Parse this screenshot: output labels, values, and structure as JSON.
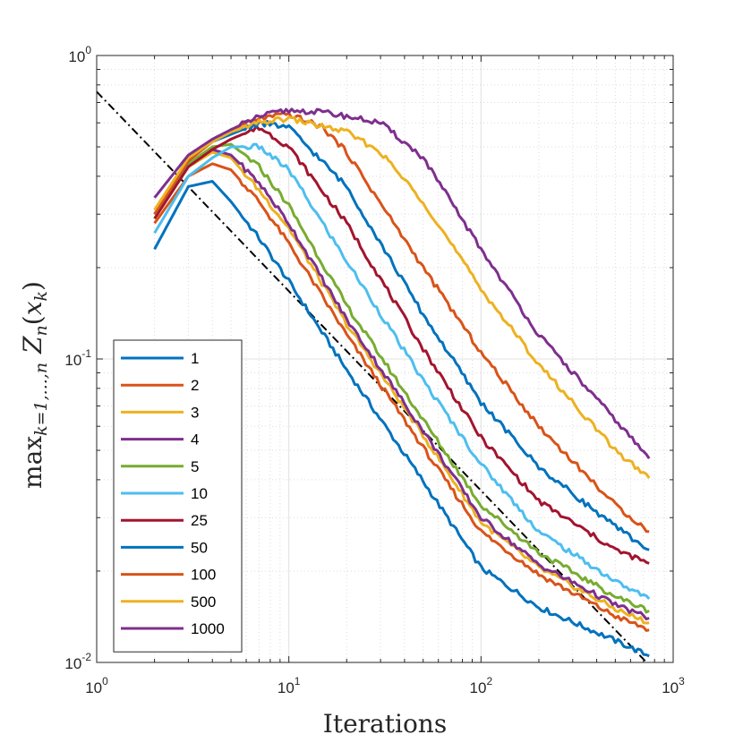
{
  "chart_data": {
    "type": "line",
    "xscale": "log",
    "yscale": "log",
    "xlim": [
      1,
      1000
    ],
    "ylim": [
      0.01,
      1
    ],
    "grid": true,
    "minor_grid": true,
    "xlabel": "Iterations",
    "ylabel": "max_{k=1,...,n} Z_n(x_k)",
    "ylabel_parts": {
      "max": "max",
      "sub": "k=1,...,n",
      "z": "Z",
      "n": "n",
      "open": "(",
      "x": "x",
      "k": "k",
      "close": ")"
    },
    "x_ticks": [
      {
        "base": "10",
        "exp": "0",
        "value": 1
      },
      {
        "base": "10",
        "exp": "1",
        "value": 10
      },
      {
        "base": "10",
        "exp": "2",
        "value": 100
      },
      {
        "base": "10",
        "exp": "3",
        "value": 1000
      }
    ],
    "y_ticks": [
      {
        "base": "10",
        "exp": "-2",
        "value": 0.01
      },
      {
        "base": "10",
        "exp": "-1",
        "value": 0.1
      },
      {
        "base": "10",
        "exp": "0",
        "value": 1
      }
    ],
    "legend_position": "bottom-left",
    "reference_line": {
      "style": "dash-dot",
      "color": "#000000",
      "x": [
        1,
        750
      ],
      "y": [
        0.76,
        0.0098
      ]
    },
    "series": [
      {
        "name": "1",
        "color": "#0072BD",
        "x": [
          2,
          3,
          4,
          5,
          7,
          10,
          20,
          50,
          100,
          200,
          500,
          750
        ],
        "y": [
          0.23,
          0.37,
          0.385,
          0.33,
          0.25,
          0.18,
          0.092,
          0.0395,
          0.0205,
          0.0152,
          0.0118,
          0.0105
        ]
      },
      {
        "name": "2",
        "color": "#D95319",
        "x": [
          2,
          3,
          4,
          5,
          7,
          10,
          20,
          50,
          100,
          200,
          500,
          750
        ],
        "y": [
          0.28,
          0.4,
          0.44,
          0.42,
          0.33,
          0.24,
          0.12,
          0.051,
          0.027,
          0.0195,
          0.0142,
          0.0128
        ]
      },
      {
        "name": "3",
        "color": "#EDB120",
        "x": [
          2,
          3,
          4,
          5,
          7,
          10,
          20,
          50,
          100,
          200,
          500,
          750
        ],
        "y": [
          0.29,
          0.43,
          0.48,
          0.46,
          0.36,
          0.27,
          0.13,
          0.056,
          0.029,
          0.0205,
          0.015,
          0.0135
        ]
      },
      {
        "name": "4",
        "color": "#7E2F8E",
        "x": [
          2,
          3,
          4,
          5,
          7,
          10,
          20,
          50,
          100,
          200,
          500,
          750
        ],
        "y": [
          0.3,
          0.44,
          0.49,
          0.47,
          0.38,
          0.28,
          0.135,
          0.058,
          0.03,
          0.021,
          0.0155,
          0.014
        ]
      },
      {
        "name": "5",
        "color": "#77AC30",
        "x": [
          2,
          3,
          4,
          5,
          7,
          10,
          20,
          50,
          100,
          200,
          500,
          750
        ],
        "y": [
          0.3,
          0.44,
          0.5,
          0.51,
          0.43,
          0.32,
          0.15,
          0.063,
          0.033,
          0.023,
          0.0165,
          0.0148
        ]
      },
      {
        "name": "10",
        "color": "#4DBEEE",
        "x": [
          2,
          3,
          4,
          5,
          7,
          10,
          20,
          50,
          100,
          200,
          500,
          750
        ],
        "y": [
          0.26,
          0.4,
          0.46,
          0.5,
          0.5,
          0.42,
          0.21,
          0.085,
          0.045,
          0.027,
          0.0185,
          0.0162
        ]
      },
      {
        "name": "25",
        "color": "#A2142F",
        "x": [
          2,
          3,
          4,
          5,
          7,
          10,
          20,
          50,
          100,
          200,
          500,
          750
        ],
        "y": [
          0.29,
          0.43,
          0.49,
          0.53,
          0.58,
          0.5,
          0.28,
          0.108,
          0.055,
          0.034,
          0.0235,
          0.0212
        ]
      },
      {
        "name": "50",
        "color": "#0072BD",
        "x": [
          2,
          3,
          4,
          5,
          7,
          10,
          20,
          50,
          100,
          200,
          500,
          750
        ],
        "y": [
          0.3,
          0.45,
          0.52,
          0.55,
          0.6,
          0.58,
          0.37,
          0.14,
          0.072,
          0.044,
          0.028,
          0.0235
        ]
      },
      {
        "name": "100",
        "color": "#D95319",
        "x": [
          2,
          3,
          4,
          5,
          7,
          10,
          15,
          20,
          50,
          100,
          200,
          500,
          750
        ],
        "y": [
          0.3,
          0.45,
          0.52,
          0.57,
          0.62,
          0.64,
          0.58,
          0.48,
          0.2,
          0.105,
          0.06,
          0.033,
          0.027
        ]
      },
      {
        "name": "500",
        "color": "#EDB120",
        "x": [
          2,
          3,
          4,
          5,
          7,
          10,
          20,
          30,
          50,
          100,
          200,
          500,
          750
        ],
        "y": [
          0.31,
          0.46,
          0.52,
          0.56,
          0.6,
          0.62,
          0.56,
          0.48,
          0.33,
          0.17,
          0.096,
          0.05,
          0.0405
        ]
      },
      {
        "name": "1000",
        "color": "#7E2F8E",
        "x": [
          2,
          3,
          4,
          5,
          7,
          10,
          15,
          20,
          30,
          50,
          100,
          200,
          500,
          750
        ],
        "y": [
          0.34,
          0.47,
          0.53,
          0.57,
          0.63,
          0.66,
          0.65,
          0.63,
          0.6,
          0.46,
          0.23,
          0.12,
          0.063,
          0.047
        ]
      }
    ]
  }
}
